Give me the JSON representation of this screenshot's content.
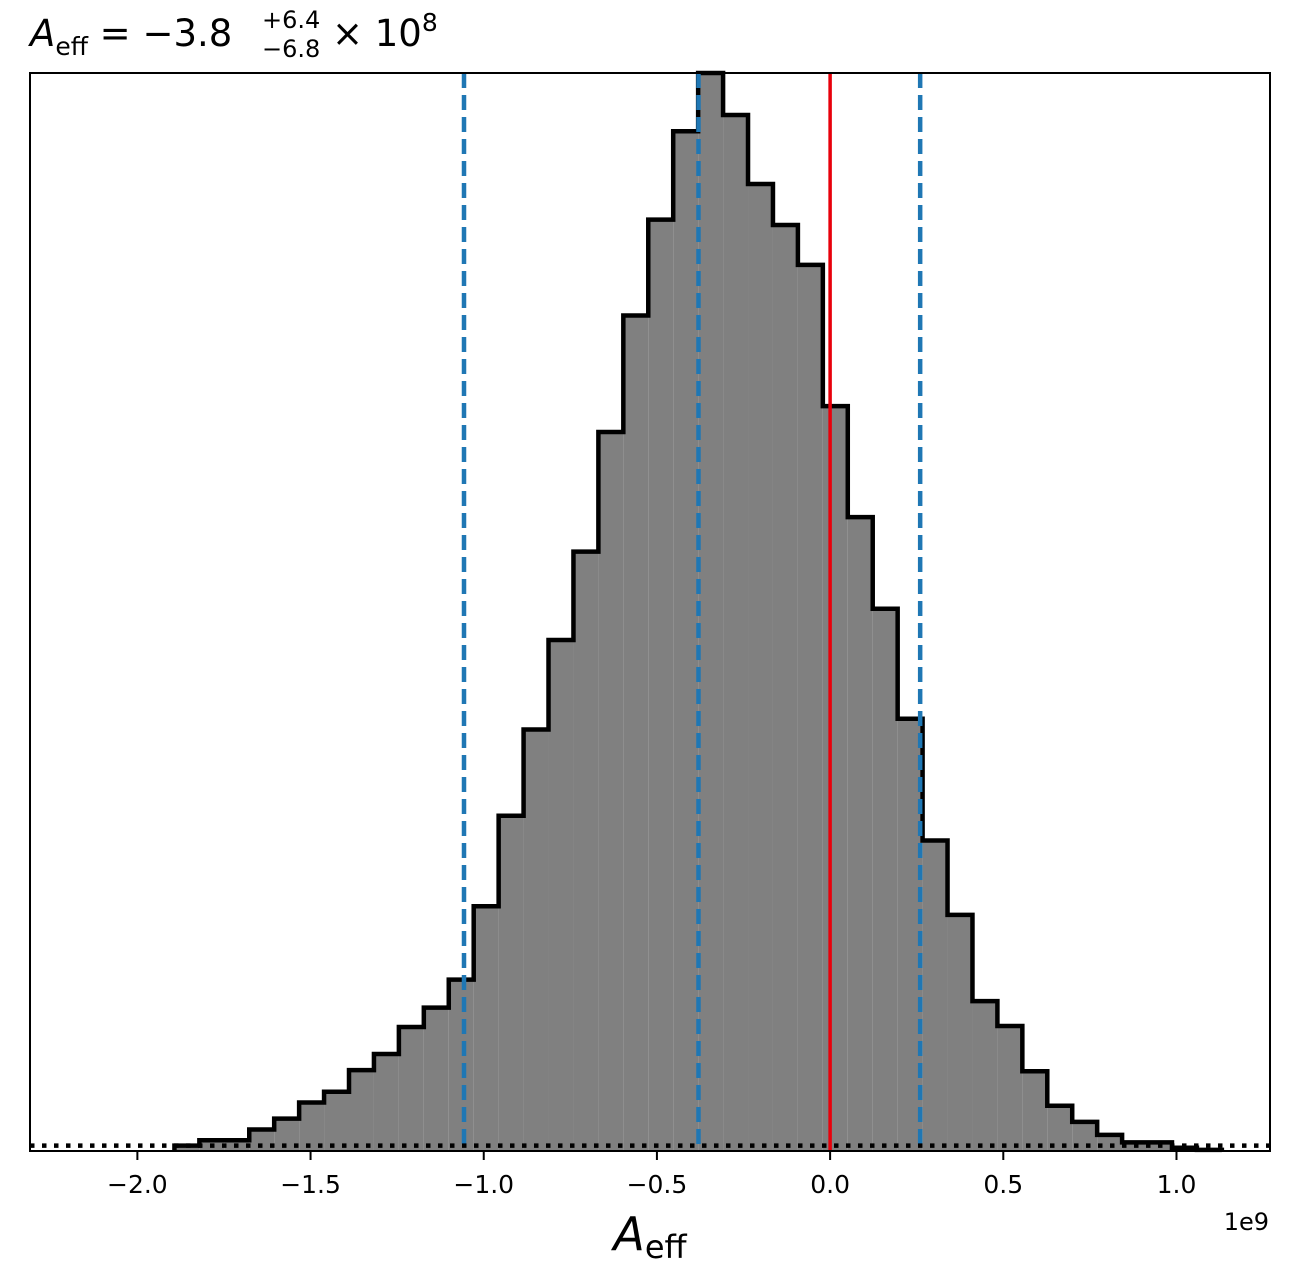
{
  "chart_data": {
    "type": "bar",
    "title": {
      "symbol": "A",
      "symbol_sub": "eff",
      "equals": " = ",
      "value": "−3.8",
      "upper_err": "+6.4",
      "lower_err": "−6.8",
      "multiplier": " × 10",
      "exponent": "8"
    },
    "xlabel": {
      "symbol": "A",
      "symbol_sub": "eff"
    },
    "offset_text": "1e9",
    "xlim": [
      -2.31,
      1.27
    ],
    "ylim": [
      0,
      0.1
    ],
    "x_ticks": [
      {
        "value": -2.0,
        "label": "−2.0"
      },
      {
        "value": -1.5,
        "label": "−1.5"
      },
      {
        "value": -1.0,
        "label": "−1.0"
      },
      {
        "value": -0.5,
        "label": "−0.5"
      },
      {
        "value": 0.0,
        "label": "0.0"
      },
      {
        "value": 0.5,
        "label": "0.5"
      },
      {
        "value": 1.0,
        "label": "1.0"
      }
    ],
    "bin_edges": [
      -1.893,
      -1.821,
      -1.749,
      -1.677,
      -1.605,
      -1.533,
      -1.461,
      -1.389,
      -1.317,
      -1.245,
      -1.173,
      -1.101,
      -1.029,
      -0.957,
      -0.885,
      -0.813,
      -0.741,
      -0.669,
      -0.597,
      -0.525,
      -0.453,
      -0.381,
      -0.309,
      -0.237,
      -0.165,
      -0.093,
      -0.021,
      0.051,
      0.123,
      0.195,
      0.267,
      0.339,
      0.411,
      0.483,
      0.555,
      0.627,
      0.699,
      0.771,
      0.843,
      0.915,
      0.987,
      1.059,
      1.131
    ],
    "counts": [
      0.0005,
      0.001,
      0.001,
      0.002,
      0.003,
      0.0045,
      0.0055,
      0.0075,
      0.009,
      0.0115,
      0.0133,
      0.0159,
      0.0227,
      0.0311,
      0.0391,
      0.0474,
      0.0556,
      0.0667,
      0.0775,
      0.0864,
      0.0946,
      0.1,
      0.0961,
      0.0897,
      0.0859,
      0.0822,
      0.0691,
      0.0588,
      0.0503,
      0.0401,
      0.0288,
      0.0219,
      0.0139,
      0.0116,
      0.0074,
      0.0042,
      0.0027,
      0.0015,
      0.0008,
      0.0008,
      0.0003,
      0.0001
    ],
    "vlines": [
      {
        "name": "lower-bound",
        "x": -1.057,
        "color": "#1f77b4",
        "style": "dashed"
      },
      {
        "name": "median",
        "x": -0.38,
        "color": "#1f77b4",
        "style": "dashed"
      },
      {
        "name": "upper-bound",
        "x": 0.26,
        "color": "#1f77b4",
        "style": "dashed"
      },
      {
        "name": "true-value",
        "x": 0.0,
        "color": "#e8000b",
        "style": "solid"
      }
    ],
    "baseline": {
      "y": 0.0005,
      "color": "#000000",
      "style": "dotted"
    },
    "fill_color": "#808080",
    "edge_color": "#000000"
  }
}
